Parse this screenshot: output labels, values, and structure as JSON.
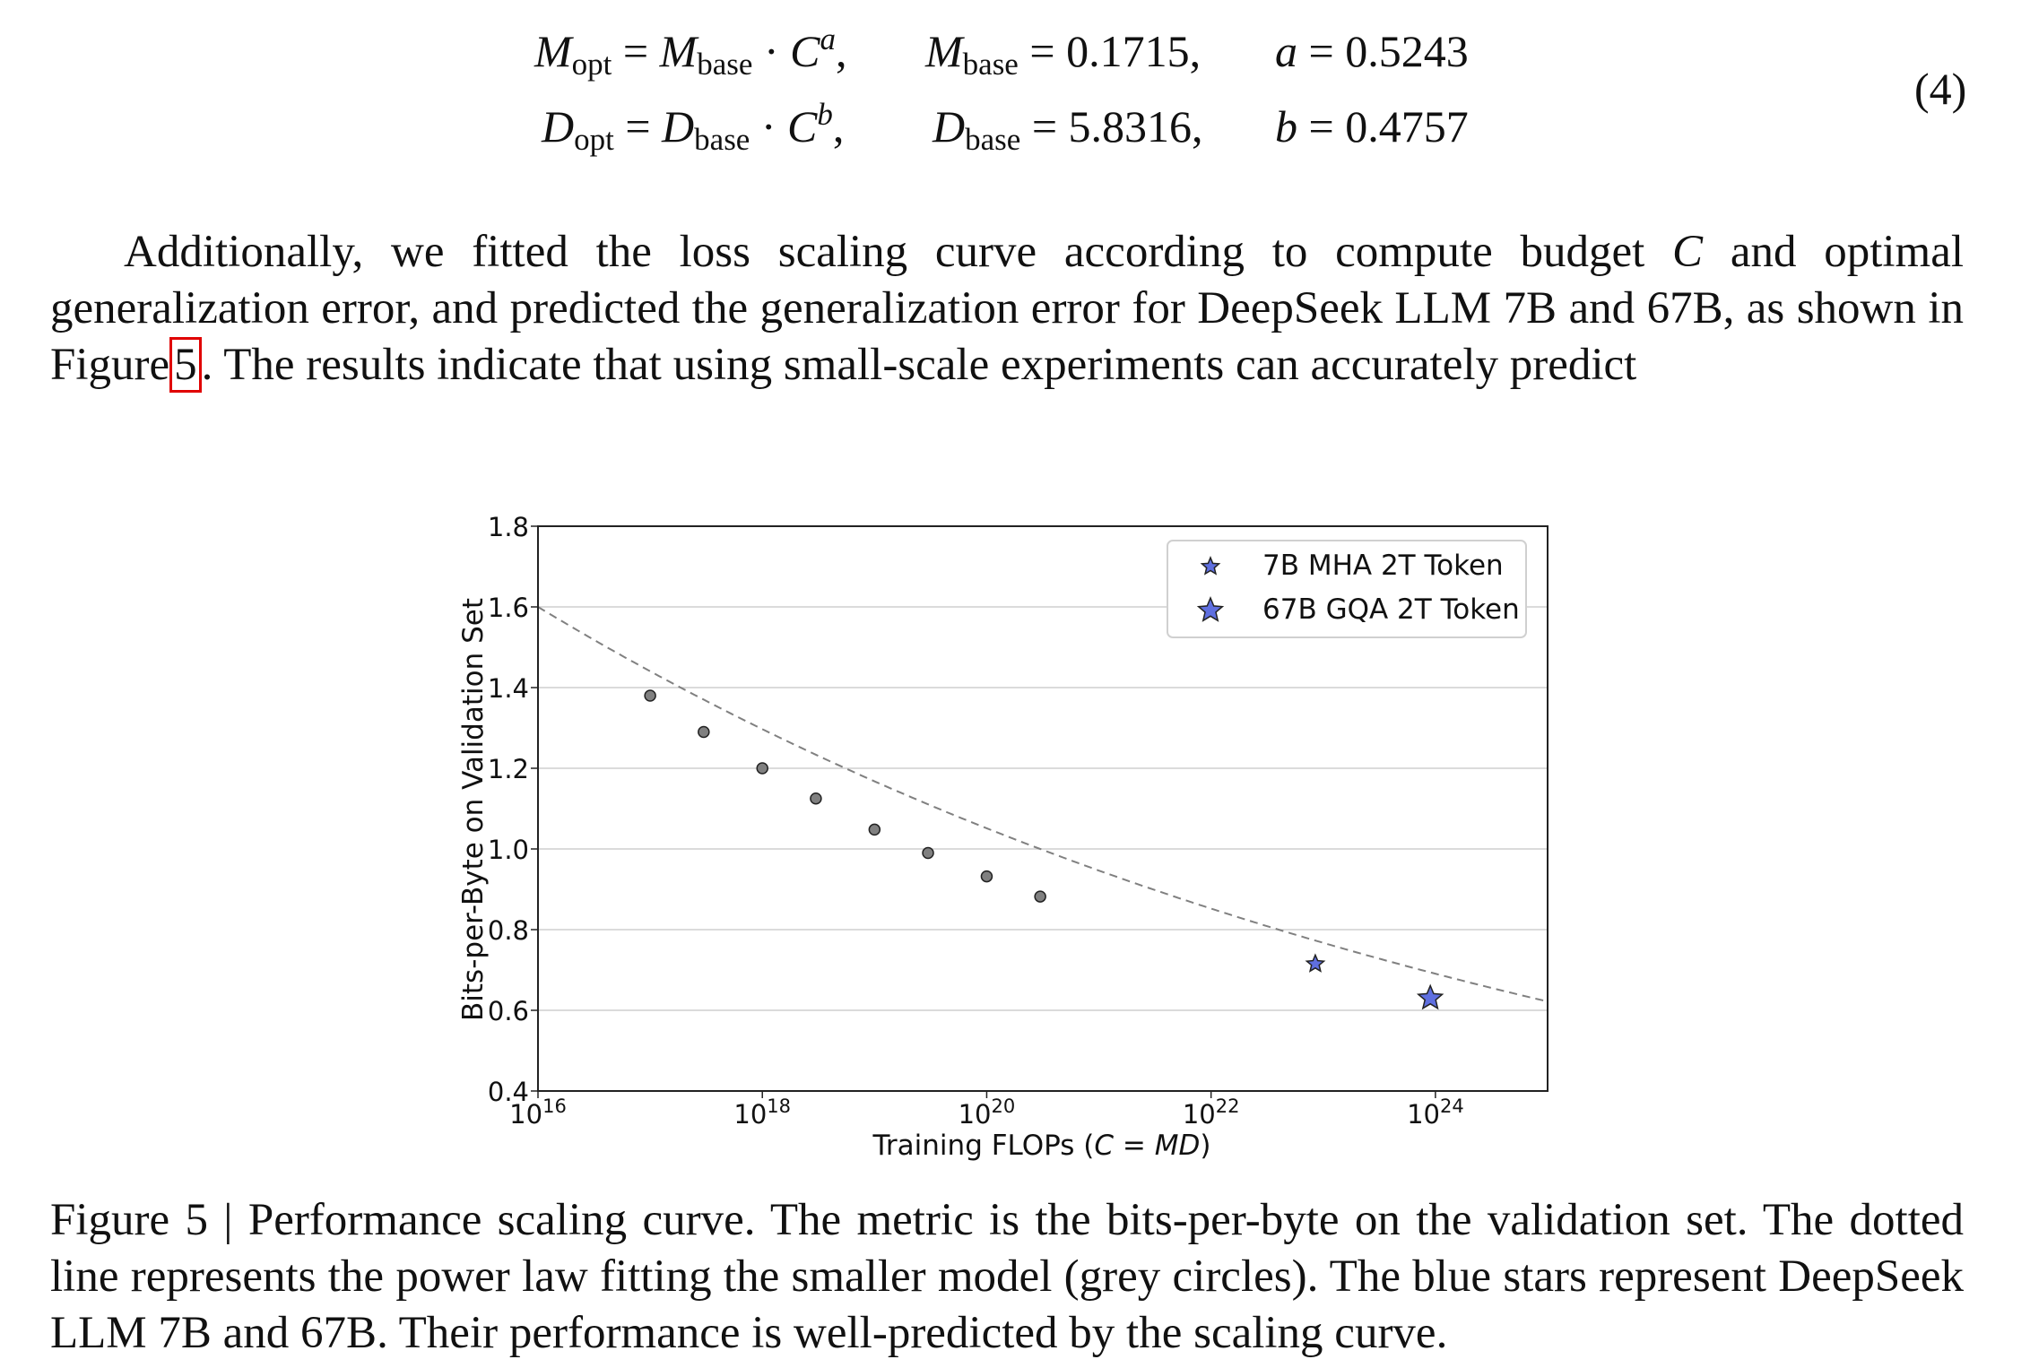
{
  "equation": {
    "line1": {
      "lhs_var": "M",
      "lhs_sub": "opt",
      "rhs_var": "M",
      "rhs_sub": "base",
      "rhs_base": "C",
      "rhs_exp": "a",
      "param_var": "M",
      "param_sub": "base",
      "param_value": "0.1715",
      "exp_var": "a",
      "exp_value": "0.5243"
    },
    "line2": {
      "lhs_var": "D",
      "lhs_sub": "opt",
      "rhs_var": "D",
      "rhs_sub": "base",
      "rhs_base": "C",
      "rhs_exp": "b",
      "param_var": "D",
      "param_sub": "base",
      "param_value": "5.8316",
      "exp_var": "b",
      "exp_value": "0.4757"
    },
    "number": "(4)"
  },
  "paragraph": {
    "before_ref": "Additionally, we fitted the loss scaling curve according to compute budget",
    "var_c": "C",
    "after_var": "and optimal generalization error, and predicted the generalization error for DeepSeek LLM 7B and 67B, as shown in Figure",
    "ref": "5",
    "after_ref": ". The results indicate that using small-scale experiments can accurately predict"
  },
  "chart_data": {
    "type": "scatter",
    "xscale": "log",
    "xlim": [
      1e+16,
      1e+25
    ],
    "ylim": [
      0.4,
      1.8
    ],
    "grid": "horizontal",
    "ylabel": "Bits-per-Byte on Validation Set",
    "xlabel_prefix": "Training FLOPs (",
    "xlabel_math": "C = MD",
    "xlabel_suffix": ")",
    "yticks": [
      "0.4",
      "1.8",
      "1.6",
      "1.4",
      "1.2",
      "1.0",
      "0.8",
      "0.6"
    ],
    "ytick_values": [
      0.4,
      1.8,
      1.6,
      1.4,
      1.2,
      1.0,
      0.8,
      0.6
    ],
    "xticks": [
      {
        "value": 1e+16,
        "base": "10",
        "exp": "16"
      },
      {
        "value": 1e+18,
        "base": "10",
        "exp": "18"
      },
      {
        "value": 1e+20,
        "base": "10",
        "exp": "20"
      },
      {
        "value": 1e+22,
        "base": "10",
        "exp": "22"
      },
      {
        "value": 1e+24,
        "base": "10",
        "exp": "24"
      }
    ],
    "fit_curve": {
      "style": "dashed",
      "color": "#808080",
      "a": 1.6,
      "b": 0.0456,
      "x0": 1e+16
    },
    "small_models": {
      "color": "#808080",
      "points": [
        {
          "x": 1e+17,
          "y": 1.38
        },
        {
          "x": 3e+17,
          "y": 1.29
        },
        {
          "x": 1e+18,
          "y": 1.2
        },
        {
          "x": 3e+18,
          "y": 1.125
        },
        {
          "x": 1e+19,
          "y": 1.048
        },
        {
          "x": 3e+19,
          "y": 0.99
        },
        {
          "x": 1e+20,
          "y": 0.932
        },
        {
          "x": 3e+20,
          "y": 0.882
        }
      ]
    },
    "large_models": {
      "color": "#5f6fe0",
      "points": [
        {
          "name": "7B MHA 2T Token",
          "x": 8.5e+22,
          "y": 0.715,
          "size": "small"
        },
        {
          "name": "67B GQA 2T Token",
          "x": 9e+23,
          "y": 0.63,
          "size": "large"
        }
      ]
    },
    "legend": {
      "placement": "top-right",
      "entries": [
        "7B MHA 2T Token",
        "67B GQA 2T Token"
      ]
    }
  },
  "caption": {
    "text": "Figure 5 | Performance scaling curve. The metric is the bits-per-byte on the validation set. The dotted line represents the power law fitting the smaller model (grey circles). The blue stars represent DeepSeek LLM 7B and 67B. Their performance is well-predicted by the scaling curve."
  }
}
